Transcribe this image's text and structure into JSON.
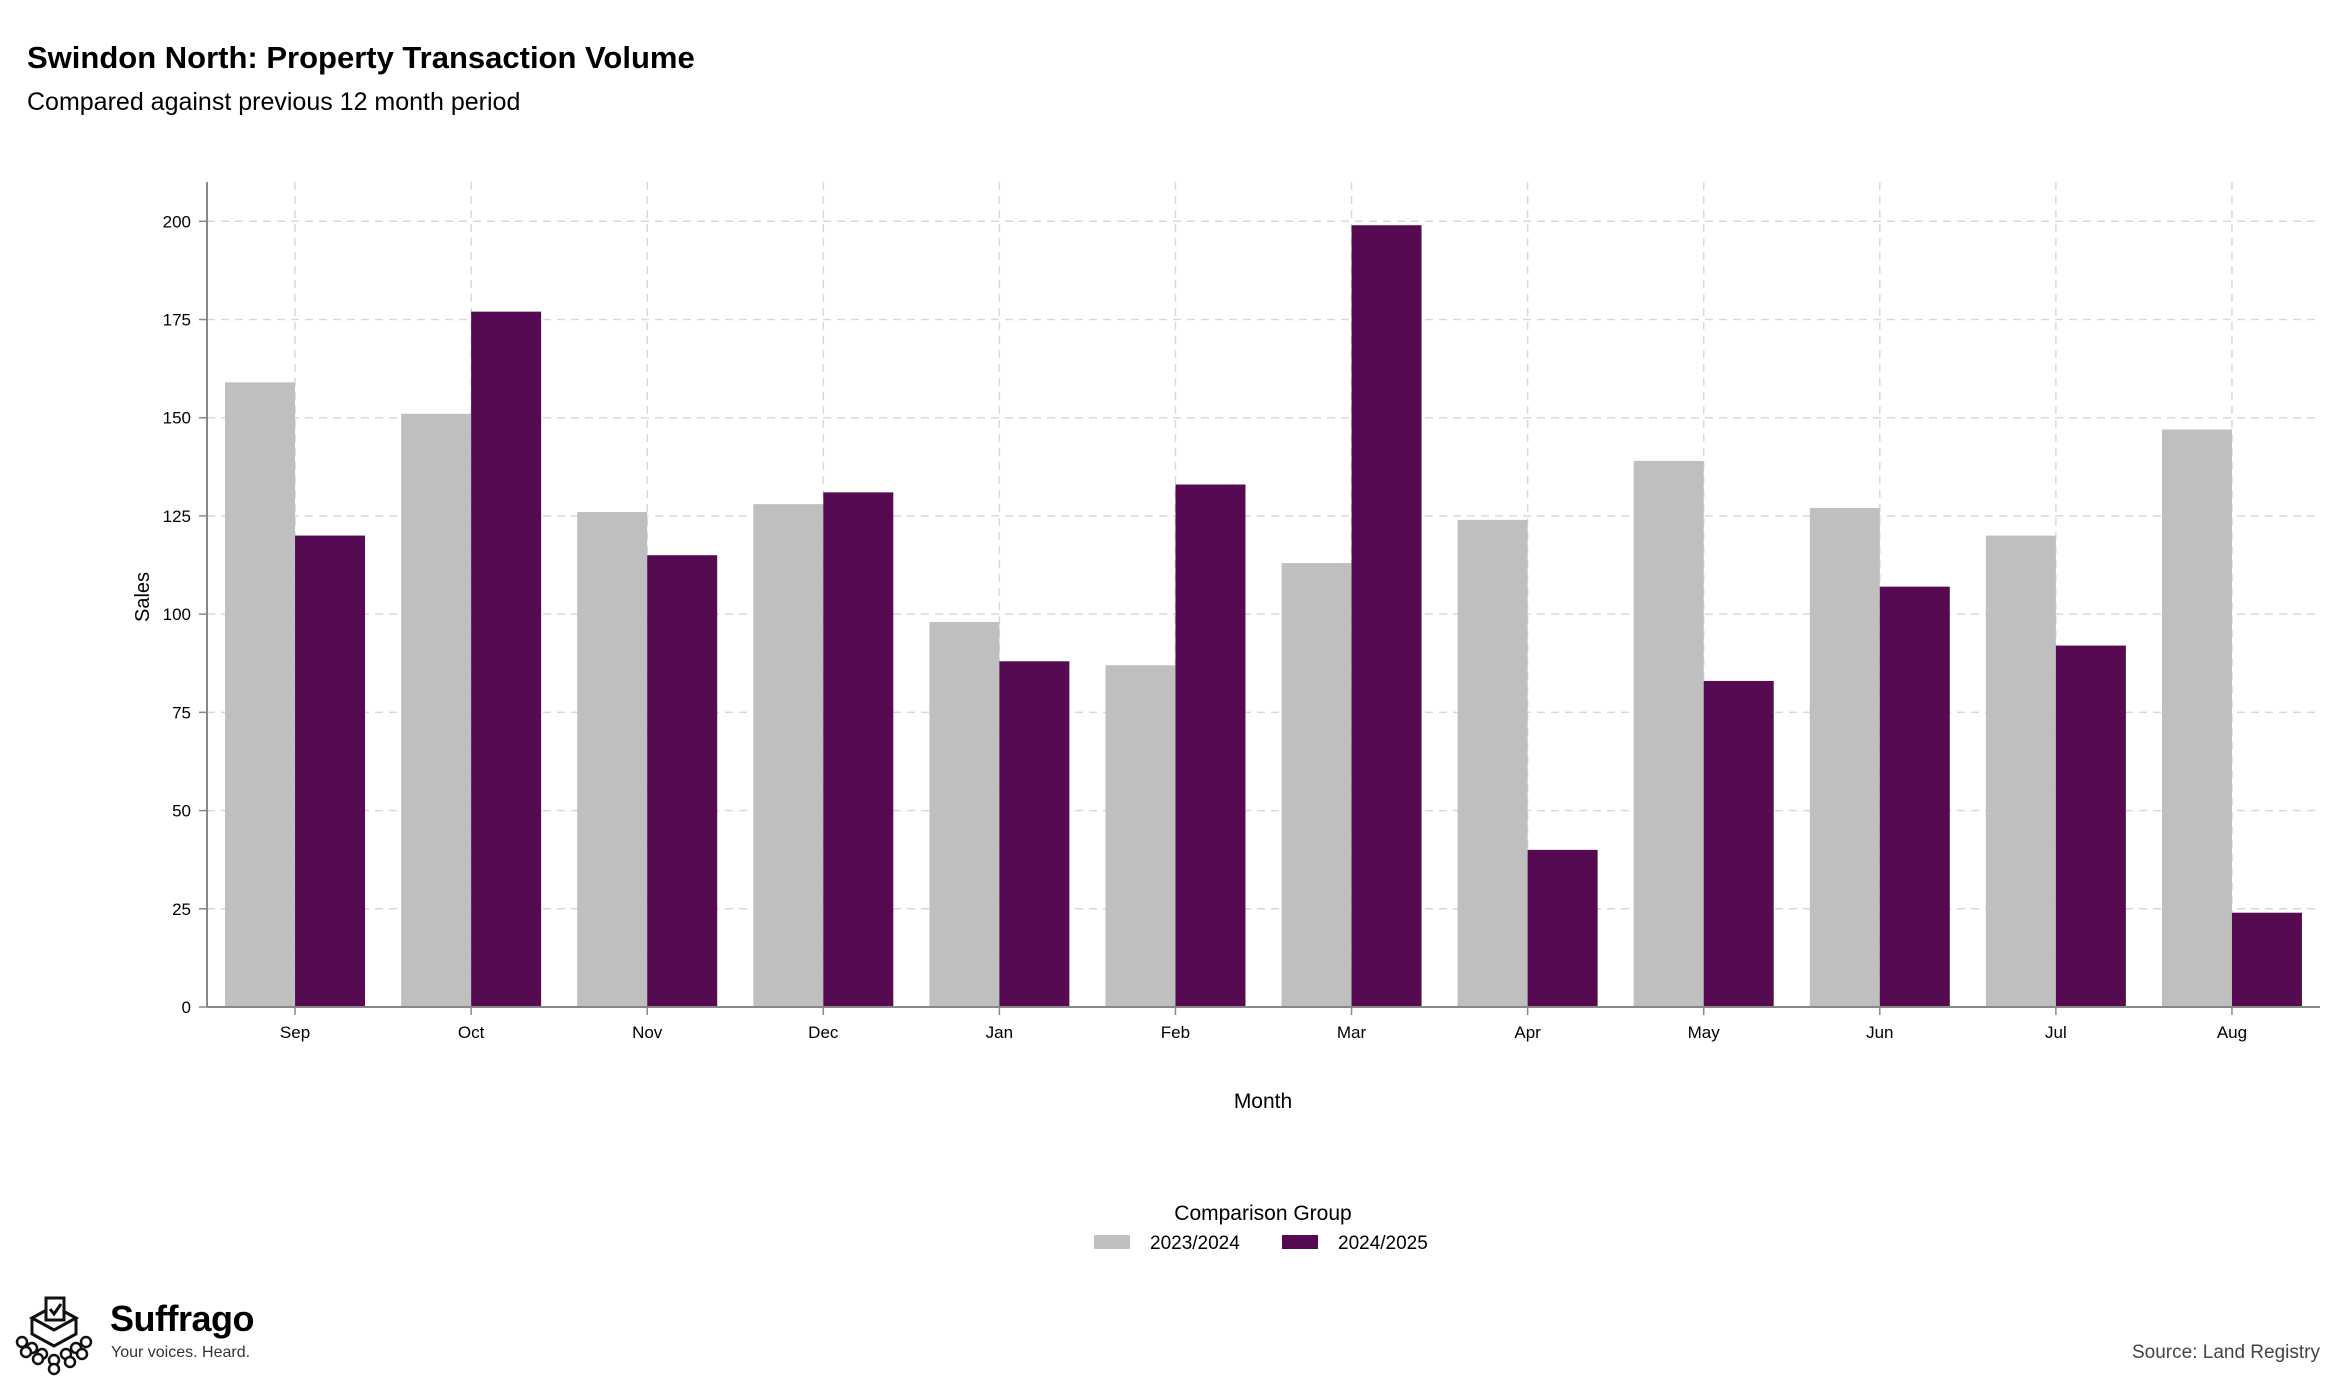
{
  "title": "Swindon North: Property Transaction Volume",
  "subtitle": "Compared against previous 12 month period",
  "brand": {
    "name": "Suffrago",
    "tagline": "Your voices. Heard."
  },
  "source": "Source: Land Registry",
  "chart_data": {
    "type": "bar",
    "xlabel": "Month",
    "ylabel": "Sales",
    "ylim": [
      0,
      210
    ],
    "yticks": [
      0,
      25,
      50,
      75,
      100,
      125,
      150,
      175,
      200
    ],
    "grid": true,
    "legend_title": "Comparison Group",
    "legend_position": "bottom",
    "categories": [
      "Sep",
      "Oct",
      "Nov",
      "Dec",
      "Jan",
      "Feb",
      "Mar",
      "Apr",
      "May",
      "Jun",
      "Jul",
      "Aug"
    ],
    "series": [
      {
        "name": "2023/2024",
        "color": "#bfbfbf",
        "values": [
          159,
          151,
          126,
          128,
          98,
          87,
          113,
          124,
          139,
          127,
          120,
          147
        ]
      },
      {
        "name": "2024/2025",
        "color": "#560a52",
        "values": [
          120,
          177,
          115,
          131,
          88,
          133,
          199,
          40,
          83,
          107,
          92,
          24
        ]
      }
    ]
  }
}
